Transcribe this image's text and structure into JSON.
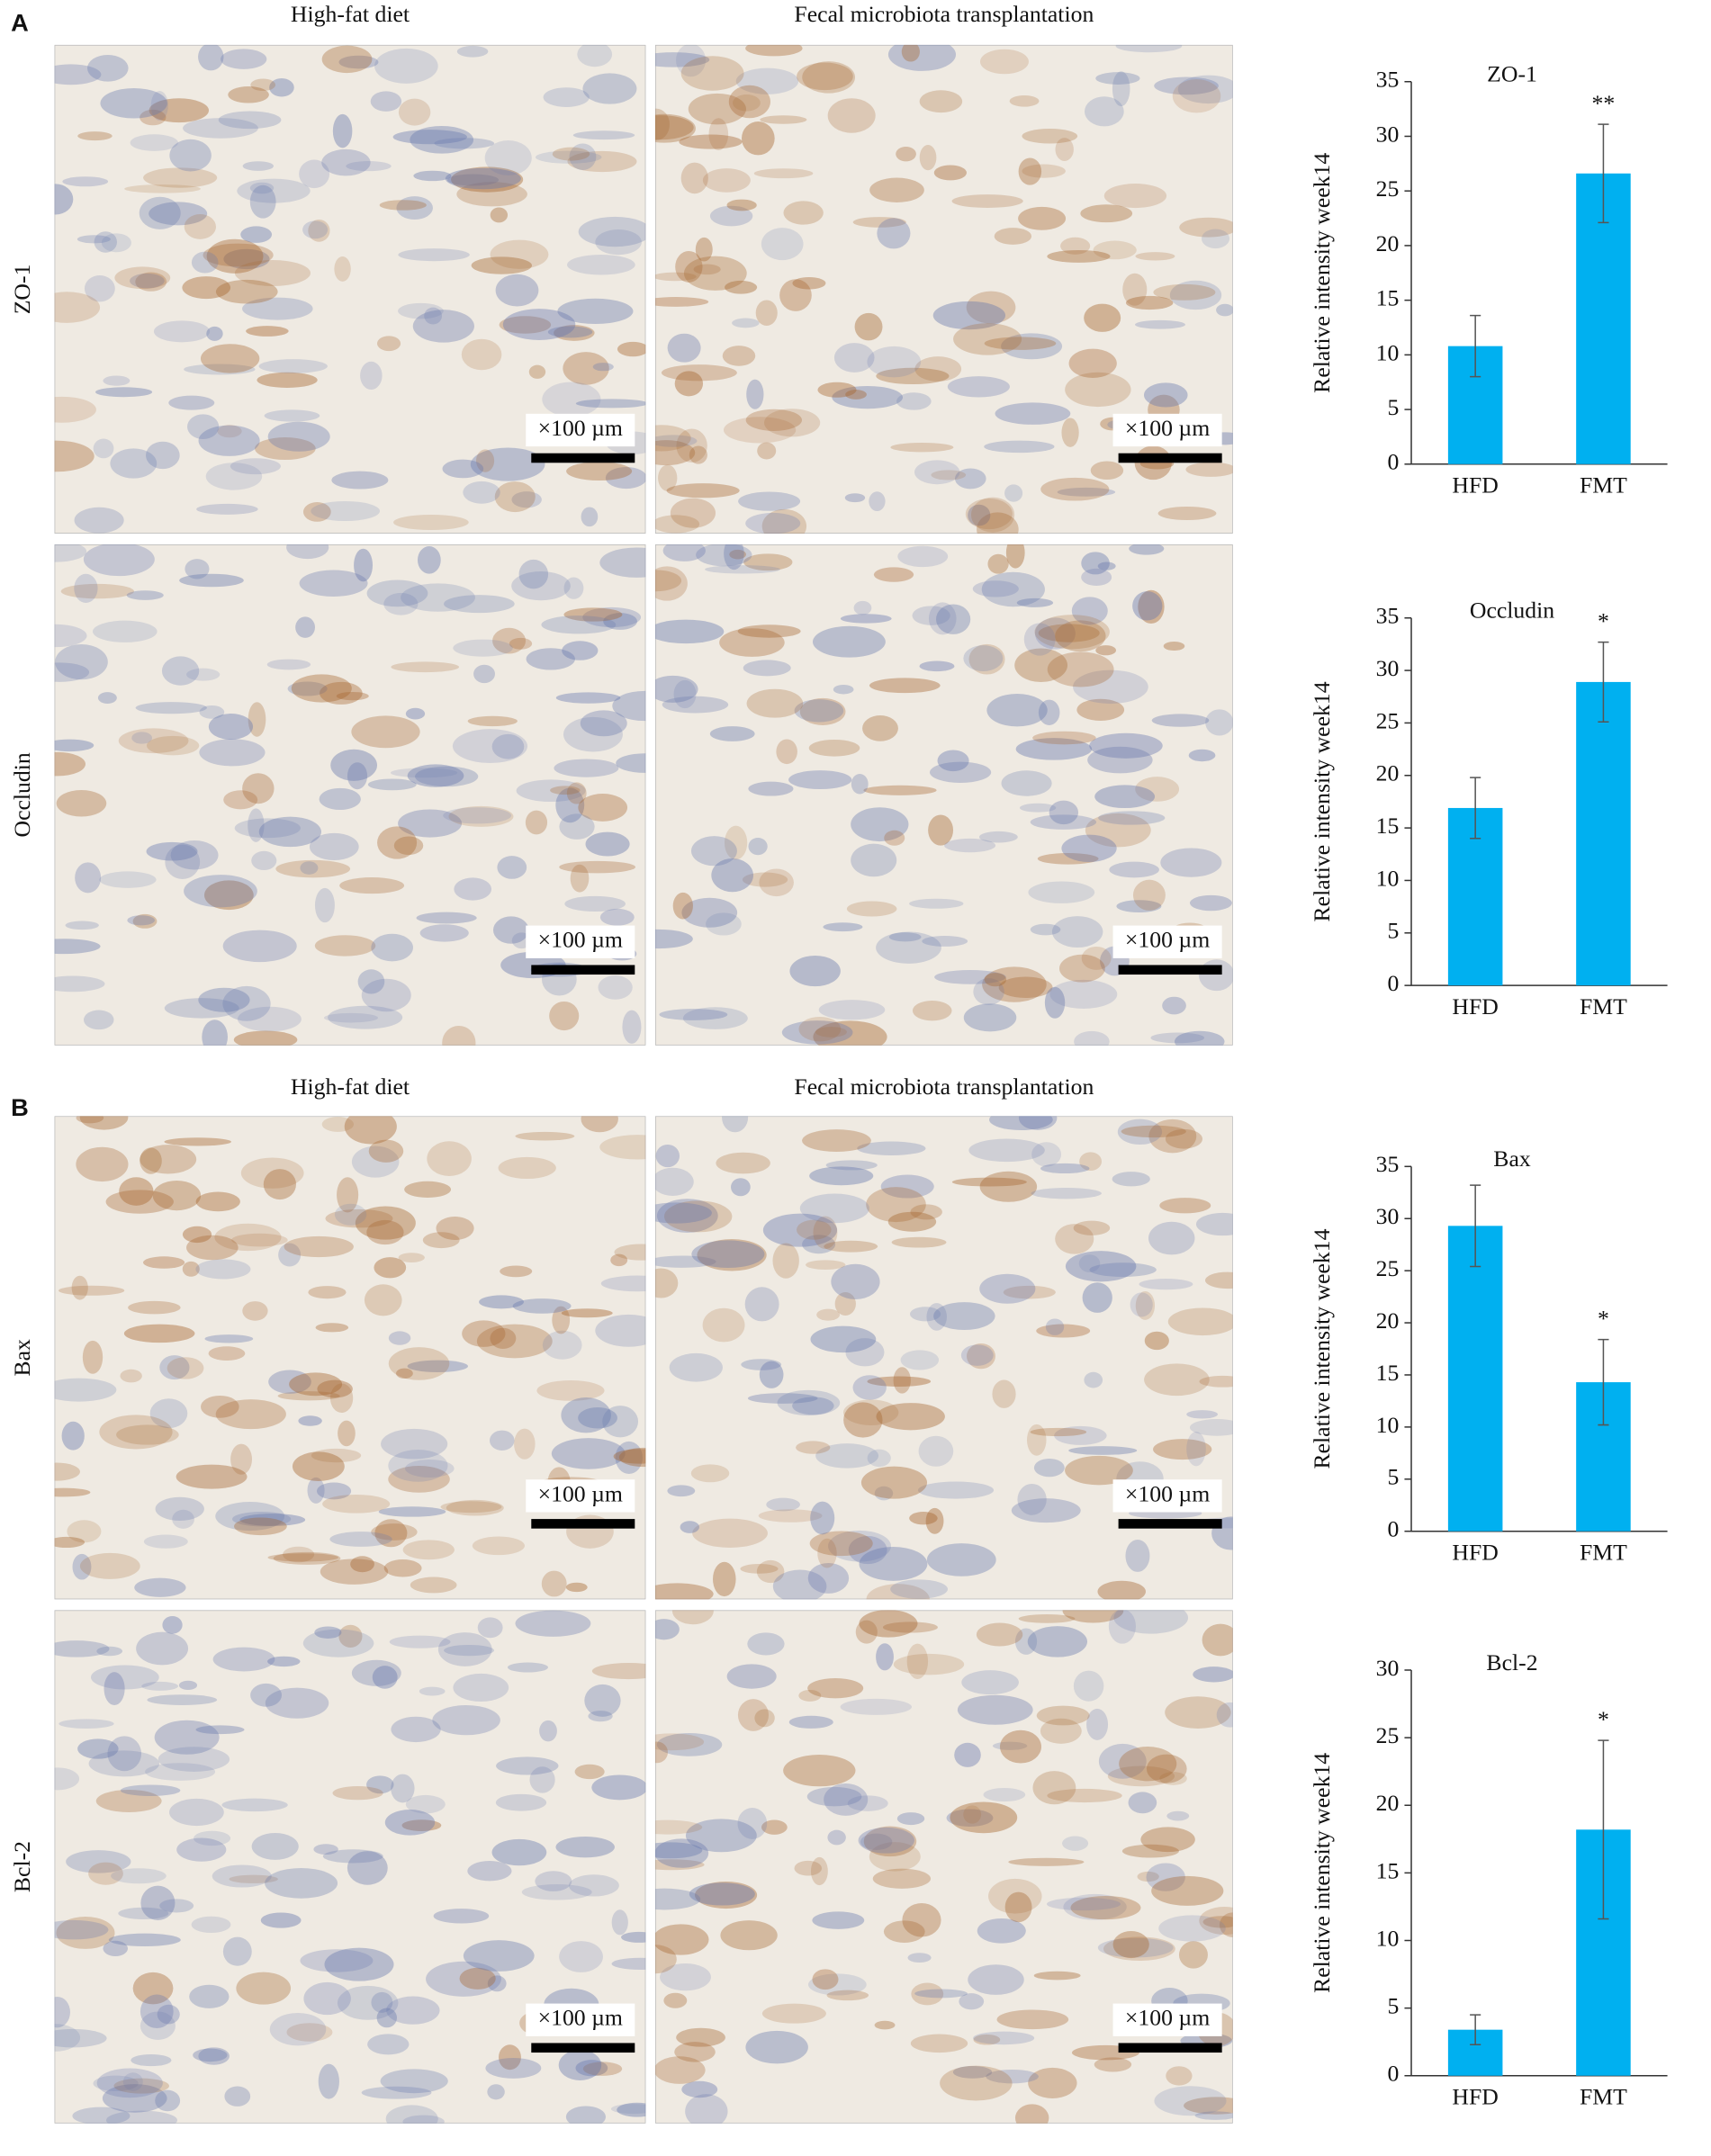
{
  "figure": {
    "panels": [
      {
        "label": "A",
        "columns": [
          "High-fat diet",
          "Fecal microbiota transplantation"
        ],
        "rows": [
          "ZO-1",
          "Occludin"
        ]
      },
      {
        "label": "B",
        "columns": [
          "High-fat diet",
          "Fecal microbiota transplantation"
        ],
        "rows": [
          "Bax",
          "Bcl-2"
        ]
      }
    ],
    "scale_bar": "×100 µm"
  },
  "chart_data": [
    {
      "type": "bar",
      "title": "ZO-1",
      "ylabel": "Relative intensity week14",
      "categories": [
        "HFD",
        "FMT"
      ],
      "values": [
        10.8,
        26.6
      ],
      "errors": [
        2.8,
        4.5
      ],
      "color": "#00b0f0",
      "ylim": [
        0,
        35
      ],
      "yticks": [
        0,
        5,
        10,
        15,
        20,
        25,
        30,
        35
      ],
      "annotations": [
        {
          "text": "**",
          "x": "FMT"
        }
      ]
    },
    {
      "type": "bar",
      "title": "Occludin",
      "ylabel": "Relative intensity week14",
      "categories": [
        "HFD",
        "FMT"
      ],
      "values": [
        16.9,
        28.9
      ],
      "errors": [
        2.9,
        3.8
      ],
      "color": "#00b0f0",
      "ylim": [
        0,
        35
      ],
      "yticks": [
        0,
        5,
        10,
        15,
        20,
        25,
        30,
        35
      ],
      "annotations": [
        {
          "text": "*",
          "x": "FMT"
        }
      ]
    },
    {
      "type": "bar",
      "title": "Bax",
      "ylabel": "Relative intensity week14",
      "categories": [
        "HFD",
        "FMT"
      ],
      "values": [
        29.3,
        14.3
      ],
      "errors": [
        3.9,
        4.1
      ],
      "color": "#00b0f0",
      "ylim": [
        0,
        35
      ],
      "yticks": [
        0,
        5,
        10,
        15,
        20,
        25,
        30,
        35
      ],
      "annotations": [
        {
          "text": "*",
          "x": "FMT"
        }
      ]
    },
    {
      "type": "bar",
      "title": "Bcl-2",
      "ylabel": "Relative intensity week14",
      "categories": [
        "HFD",
        "FMT"
      ],
      "values": [
        3.4,
        18.2
      ],
      "errors": [
        1.1,
        6.6
      ],
      "color": "#00b0f0",
      "ylim": [
        0,
        30
      ],
      "yticks": [
        0,
        5,
        10,
        15,
        20,
        25,
        30
      ],
      "annotations": [
        {
          "text": "*",
          "x": "FMT"
        }
      ]
    }
  ]
}
